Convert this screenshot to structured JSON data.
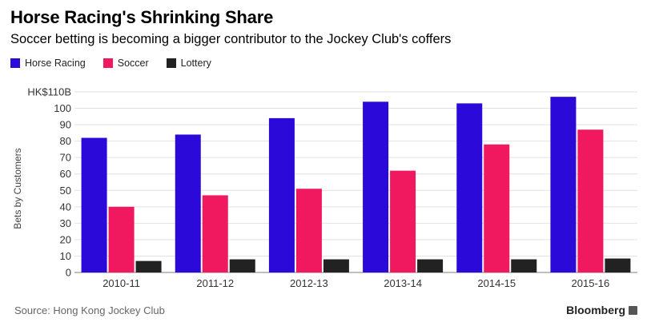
{
  "header": {
    "title": "Horse Racing's Shrinking Share",
    "subtitle": "Soccer betting is becoming a bigger contributor to the Jockey Club's coffers"
  },
  "footer": {
    "source": "Source: Hong Kong Jockey Club",
    "brand": "Bloomberg"
  },
  "chart_data": {
    "type": "bar",
    "categories": [
      "2010-11",
      "2011-12",
      "2012-13",
      "2013-14",
      "2014-15",
      "2015-16"
    ],
    "series": [
      {
        "name": "Horse Racing",
        "color": "#2b09d8",
        "values": [
          82,
          84,
          94,
          104,
          103,
          107
        ]
      },
      {
        "name": "Soccer",
        "color": "#f0185f",
        "values": [
          40,
          47,
          51,
          62,
          78,
          87
        ]
      },
      {
        "name": "Lottery",
        "color": "#222222",
        "values": [
          7,
          8,
          8,
          8,
          8,
          8.5
        ]
      }
    ],
    "ylabel": "Bets by Customers",
    "ylim": [
      0,
      110
    ],
    "yticks": [
      0,
      10,
      20,
      30,
      40,
      50,
      60,
      70,
      80,
      90,
      100,
      110
    ],
    "ytick_labels": [
      "0",
      "10",
      "20",
      "30",
      "40",
      "50",
      "60",
      "70",
      "80",
      "90",
      "100",
      "HK$110B"
    ],
    "grid": true,
    "legend_position": "top-left"
  }
}
